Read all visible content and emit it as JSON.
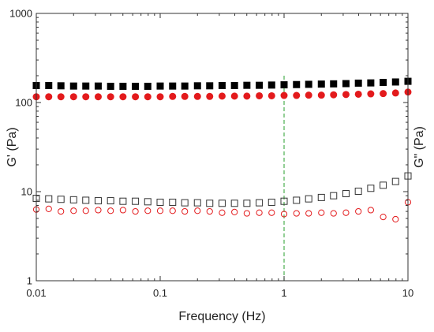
{
  "chart_data": {
    "type": "scatter",
    "xlabel": "Frequency (Hz)",
    "ylabel_left": "G' (Pa)",
    "ylabel_right": "G\" (Pa)",
    "xscale": "log",
    "yscale": "log",
    "xlim": [
      0.01,
      10
    ],
    "ylim": [
      1,
      1000
    ],
    "xticks": [
      {
        "value": 0.01,
        "label": "0.01"
      },
      {
        "value": 0.1,
        "label": "0.1"
      },
      {
        "value": 1,
        "label": "1"
      },
      {
        "value": 10,
        "label": "10"
      }
    ],
    "yticks": [
      {
        "value": 1,
        "label": "1"
      },
      {
        "value": 10,
        "label": "10"
      },
      {
        "value": 100,
        "label": "100"
      },
      {
        "value": 1000,
        "label": "1000"
      }
    ],
    "grid": false,
    "reference_line": {
      "x": 1,
      "color": "#4caf50",
      "style": "dashed"
    },
    "series": [
      {
        "marker": "square",
        "filled": true,
        "color": "#000000",
        "x": [
          0.01,
          0.0126,
          0.0158,
          0.02,
          0.0251,
          0.0316,
          0.0398,
          0.0501,
          0.0631,
          0.0794,
          0.1,
          0.126,
          0.158,
          0.2,
          0.251,
          0.316,
          0.398,
          0.501,
          0.631,
          0.794,
          1,
          1.26,
          1.58,
          2,
          2.51,
          3.16,
          3.98,
          5.01,
          6.31,
          7.94,
          10
        ],
        "y": [
          155,
          155,
          154,
          153,
          153,
          153,
          152,
          152,
          152,
          152,
          153,
          153,
          153,
          154,
          154,
          155,
          155,
          156,
          156,
          157,
          158,
          159,
          160,
          161,
          162,
          163,
          165,
          166,
          168,
          170,
          173
        ]
      },
      {
        "marker": "circle",
        "filled": true,
        "color": "#e31a1c",
        "x": [
          0.01,
          0.0126,
          0.0158,
          0.02,
          0.0251,
          0.0316,
          0.0398,
          0.0501,
          0.0631,
          0.0794,
          0.1,
          0.126,
          0.158,
          0.2,
          0.251,
          0.316,
          0.398,
          0.501,
          0.631,
          0.794,
          1,
          1.26,
          1.58,
          2,
          2.51,
          3.16,
          3.98,
          5.01,
          6.31,
          7.94,
          10
        ],
        "y": [
          116,
          116,
          116,
          116,
          116,
          116,
          116,
          116,
          116,
          116,
          116,
          117,
          117,
          117,
          117,
          118,
          118,
          118,
          119,
          119,
          120,
          120,
          121,
          121,
          122,
          123,
          124,
          125,
          126,
          128,
          131
        ]
      },
      {
        "marker": "square",
        "filled": false,
        "color": "#333333",
        "x": [
          0.01,
          0.0126,
          0.0158,
          0.02,
          0.0251,
          0.0316,
          0.0398,
          0.0501,
          0.0631,
          0.0794,
          0.1,
          0.126,
          0.158,
          0.2,
          0.251,
          0.316,
          0.398,
          0.501,
          0.631,
          0.794,
          1,
          1.26,
          1.58,
          2,
          2.51,
          3.16,
          3.98,
          5.01,
          6.31,
          7.94,
          10
        ],
        "y": [
          8.4,
          8.3,
          8.2,
          8.1,
          8.0,
          7.9,
          7.9,
          7.8,
          7.8,
          7.7,
          7.6,
          7.6,
          7.5,
          7.5,
          7.4,
          7.4,
          7.4,
          7.4,
          7.5,
          7.6,
          7.8,
          8.0,
          8.3,
          8.6,
          9.0,
          9.5,
          10.1,
          10.9,
          11.8,
          13.0,
          15.0
        ]
      },
      {
        "marker": "circle",
        "filled": false,
        "color": "#e31a1c",
        "x": [
          0.01,
          0.0126,
          0.0158,
          0.02,
          0.0251,
          0.0316,
          0.0398,
          0.0501,
          0.0631,
          0.0794,
          0.1,
          0.126,
          0.158,
          0.2,
          0.251,
          0.316,
          0.398,
          0.501,
          0.631,
          0.794,
          1,
          1.26,
          1.58,
          2,
          2.51,
          3.16,
          3.98,
          5.01,
          6.31,
          7.94,
          10
        ],
        "y": [
          6.3,
          6.4,
          6.0,
          6.1,
          6.1,
          6.2,
          6.1,
          6.2,
          6.0,
          6.1,
          6.1,
          6.1,
          6.0,
          6.1,
          6.0,
          5.8,
          5.9,
          5.7,
          5.8,
          5.8,
          5.6,
          5.7,
          5.7,
          5.8,
          5.7,
          5.8,
          6.0,
          6.2,
          5.2,
          4.9,
          7.6
        ]
      }
    ]
  }
}
